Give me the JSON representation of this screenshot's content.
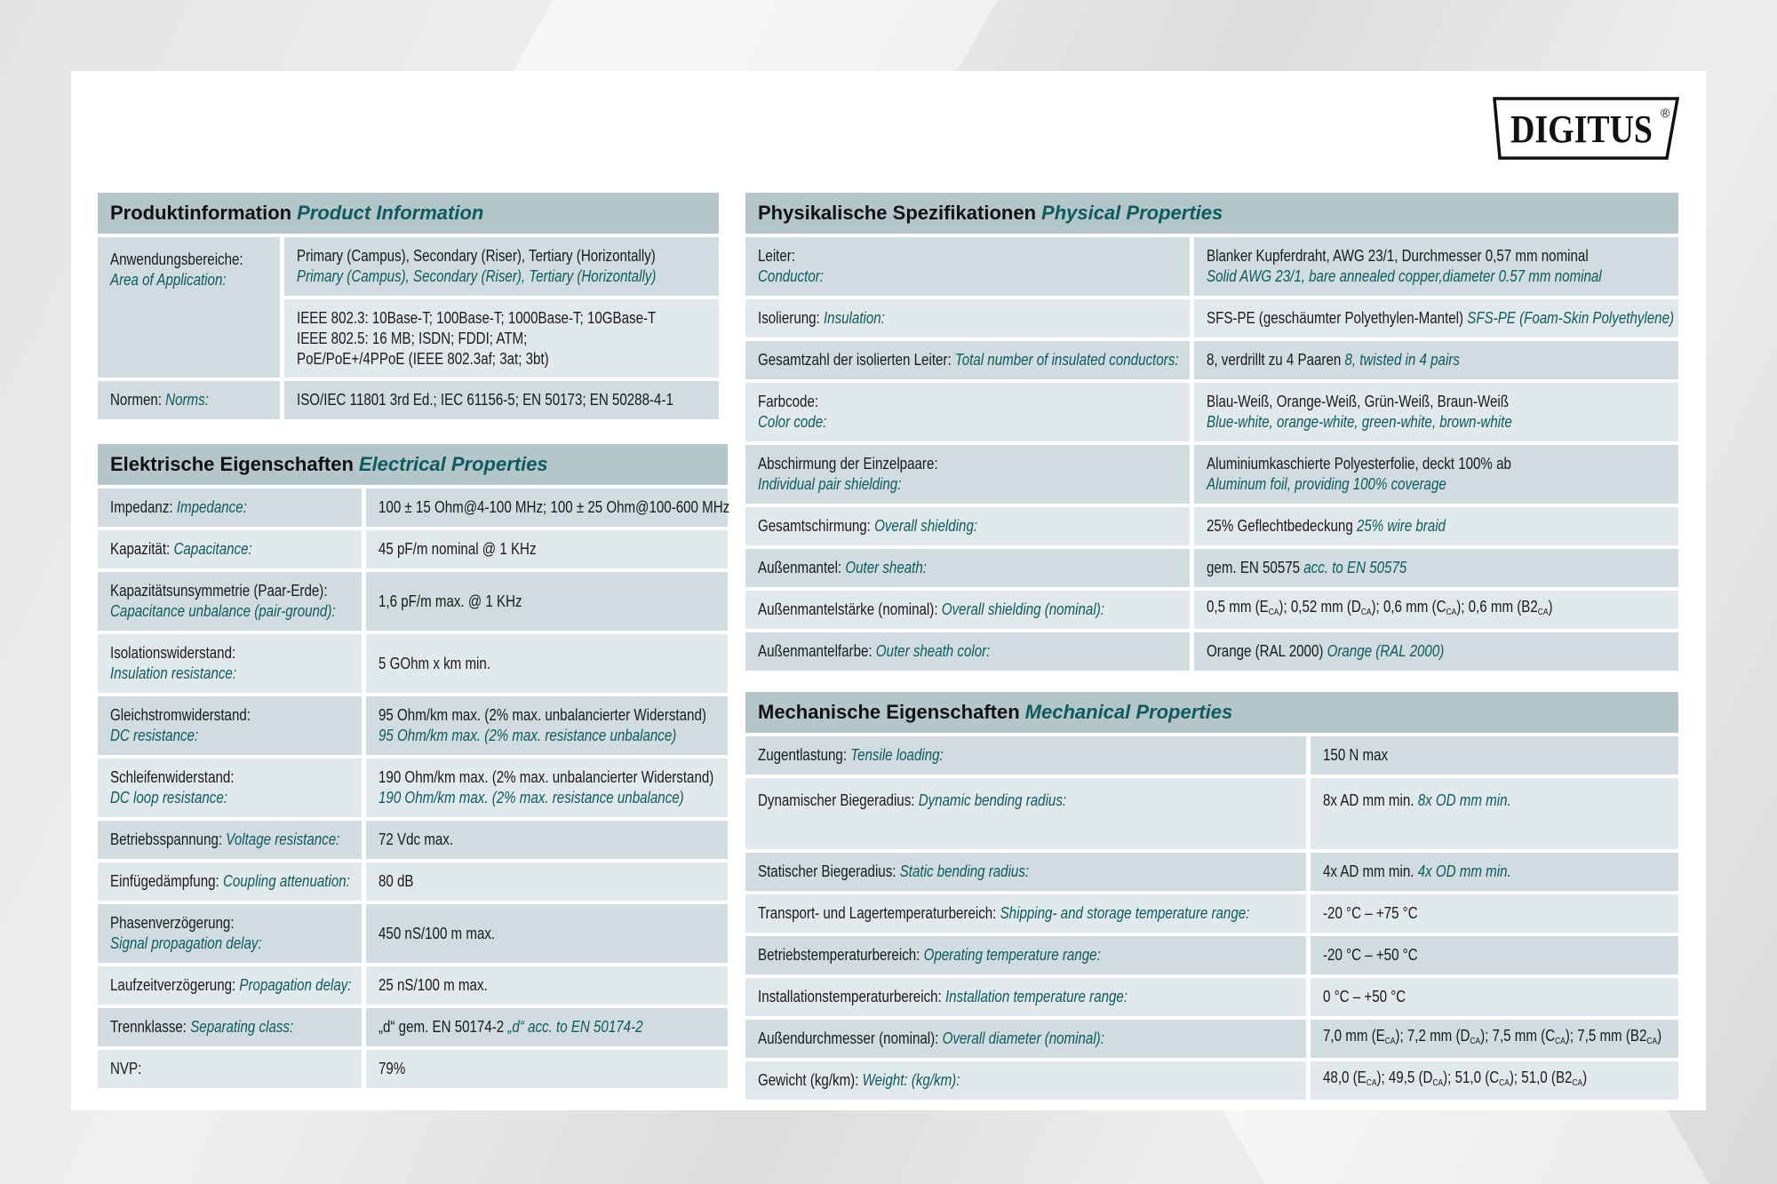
{
  "brand": {
    "logo_text": "DIGITUS",
    "registered": "®"
  },
  "colors": {
    "header_bg": "#b4c6ca",
    "row_dark": "#d0dcdf",
    "row_light": "#e1e9ec",
    "english_text": "#0d5b5c"
  },
  "product": {
    "title_de": "Produktinformation",
    "title_en": "Product Information",
    "rows": [
      {
        "label": [
          [
            {
              "t": "Anwendungsbereiche:"
            }
          ],
          [
            {
              "t": "Area of Application:",
              "en": true
            }
          ]
        ],
        "values": [
          [
            [
              {
                "t": "Primary (Campus), Secondary (Riser), Tertiary (Horizontally)"
              }
            ],
            [
              {
                "t": "Primary (Campus), Secondary (Riser), Tertiary (Horizontally)",
                "en": true
              }
            ]
          ],
          [
            [
              {
                "t": "IEEE 802.3: 10Base-T; 100Base-T; 1000Base-T; 10GBase-T"
              }
            ],
            [
              {
                "t": "IEEE 802.5: 16 MB; ISDN; FDDI; ATM;"
              }
            ],
            [
              {
                "t": "PoE/PoE+/4PPoE (IEEE 802.3af; 3at; 3bt)"
              }
            ]
          ]
        ]
      },
      {
        "label": [
          [
            {
              "t": "Normen: "
            },
            {
              "t": "Norms:",
              "en": true
            }
          ]
        ],
        "values": [
          [
            [
              {
                "t": "ISO/IEC 11801 3rd Ed.; IEC 61156-5; EN 50173; EN 50288-4-1"
              }
            ]
          ]
        ]
      }
    ]
  },
  "electrical": {
    "title_de": "Elektrische Eigenschaften",
    "title_en": "Electrical Properties",
    "rows": [
      {
        "label": [
          [
            {
              "t": "Impedanz: "
            },
            {
              "t": "Impedance:",
              "en": true
            }
          ]
        ],
        "value": [
          [
            {
              "t": "100 ± 15 Ohm@4-100 MHz; 100 ± 25 Ohm@100-600 MHz"
            }
          ]
        ]
      },
      {
        "label": [
          [
            {
              "t": "Kapazität: "
            },
            {
              "t": "Capacitance:",
              "en": true
            }
          ]
        ],
        "value": [
          [
            {
              "t": "45 pF/m nominal @ 1 KHz"
            }
          ]
        ]
      },
      {
        "label": [
          [
            {
              "t": "Kapazitätsunsymmetrie (Paar-Erde):"
            }
          ],
          [
            {
              "t": "Capacitance unbalance (pair-ground):",
              "en": true
            }
          ]
        ],
        "value": [
          [
            {
              "t": "1,6 pF/m max. @ 1 KHz"
            }
          ]
        ]
      },
      {
        "label": [
          [
            {
              "t": "Isolationswiderstand:"
            }
          ],
          [
            {
              "t": "Insulation resistance:",
              "en": true
            }
          ]
        ],
        "value": [
          [
            {
              "t": "5 GOhm x km min."
            }
          ]
        ]
      },
      {
        "label": [
          [
            {
              "t": "Gleichstromwiderstand:"
            }
          ],
          [
            {
              "t": "DC resistance:",
              "en": true
            }
          ]
        ],
        "value": [
          [
            {
              "t": "95 Ohm/km max. (2% max. unbalancierter Widerstand)"
            }
          ],
          [
            {
              "t": "95 Ohm/km max. (2% max. resistance unbalance)",
              "en": true
            }
          ]
        ]
      },
      {
        "label": [
          [
            {
              "t": "Schleifenwiderstand:"
            }
          ],
          [
            {
              "t": "DC loop resistance:",
              "en": true
            }
          ]
        ],
        "value": [
          [
            {
              "t": "190 Ohm/km max. (2% max. unbalancierter Widerstand)"
            }
          ],
          [
            {
              "t": "190 Ohm/km max. (2% max. resistance unbalance)",
              "en": true
            }
          ]
        ]
      },
      {
        "label": [
          [
            {
              "t": "Betriebsspannung: "
            },
            {
              "t": "Voltage resistance:",
              "en": true
            }
          ]
        ],
        "value": [
          [
            {
              "t": "72 Vdc max."
            }
          ]
        ]
      },
      {
        "label": [
          [
            {
              "t": "Einfügedämpfung: "
            },
            {
              "t": "Coupling attenuation:",
              "en": true
            }
          ]
        ],
        "value": [
          [
            {
              "t": "80 dB"
            }
          ]
        ]
      },
      {
        "label": [
          [
            {
              "t": "Phasenverzögerung:"
            }
          ],
          [
            {
              "t": "Signal propagation delay:",
              "en": true
            }
          ]
        ],
        "value": [
          [
            {
              "t": "450 nS/100 m max."
            }
          ]
        ]
      },
      {
        "label": [
          [
            {
              "t": "Laufzeitverzögerung: "
            },
            {
              "t": "Propagation delay:",
              "en": true
            }
          ]
        ],
        "value": [
          [
            {
              "t": "25 nS/100 m max."
            }
          ]
        ]
      },
      {
        "label": [
          [
            {
              "t": "Trennklasse: "
            },
            {
              "t": "Separating class:",
              "en": true
            }
          ]
        ],
        "value": [
          [
            {
              "t": "„d“ gem. EN 50174-2 "
            },
            {
              "t": "„d“ acc. to EN 50174-2",
              "en": true
            }
          ]
        ]
      },
      {
        "label": [
          [
            {
              "t": "NVP:"
            }
          ]
        ],
        "value": [
          [
            {
              "t": "79%"
            }
          ]
        ]
      }
    ]
  },
  "physical": {
    "title_de": "Physikalische Spezifikationen",
    "title_en": "Physical Properties",
    "rows": [
      {
        "label": [
          [
            {
              "t": "Leiter:"
            }
          ],
          [
            {
              "t": "Conductor:",
              "en": true
            }
          ]
        ],
        "value": [
          [
            {
              "t": "Blanker Kupferdraht, AWG 23/1, Durchmesser 0,57 mm nominal"
            }
          ],
          [
            {
              "t": "Solid AWG 23/1, bare annealed copper,diameter 0.57 mm nominal",
              "en": true
            }
          ]
        ]
      },
      {
        "label": [
          [
            {
              "t": "Isolierung: "
            },
            {
              "t": "Insulation:",
              "en": true
            }
          ]
        ],
        "value": [
          [
            {
              "t": "SFS-PE (geschäumter Polyethylen-Mantel) "
            },
            {
              "t": "SFS-PE (Foam-Skin Polyethylene)",
              "en": true
            }
          ]
        ]
      },
      {
        "label": [
          [
            {
              "t": "Gesamtzahl der isolierten Leiter: "
            },
            {
              "t": "Total number of insulated conductors:",
              "en": true
            }
          ]
        ],
        "value": [
          [
            {
              "t": "8, verdrillt zu 4 Paaren "
            },
            {
              "t": "8, twisted in 4 pairs",
              "en": true
            }
          ]
        ]
      },
      {
        "label": [
          [
            {
              "t": "Farbcode:"
            }
          ],
          [
            {
              "t": "Color code:",
              "en": true
            }
          ]
        ],
        "value": [
          [
            {
              "t": "Blau-Weiß, Orange-Weiß, Grün-Weiß, Braun-Weiß"
            }
          ],
          [
            {
              "t": "Blue-white, orange-white, green-white, brown-white",
              "en": true
            }
          ]
        ]
      },
      {
        "label": [
          [
            {
              "t": "Abschirmung der Einzelpaare:"
            }
          ],
          [
            {
              "t": "Individual pair shielding:",
              "en": true
            }
          ]
        ],
        "value": [
          [
            {
              "t": "Aluminiumkaschierte Polyesterfolie, deckt 100% ab"
            }
          ],
          [
            {
              "t": "Aluminum foil, providing 100% coverage",
              "en": true
            }
          ]
        ]
      },
      {
        "label": [
          [
            {
              "t": "Gesamtschirmung: "
            },
            {
              "t": "Overall shielding:",
              "en": true
            }
          ]
        ],
        "value": [
          [
            {
              "t": "25% Geflechtbedeckung "
            },
            {
              "t": "25% wire braid",
              "en": true
            }
          ]
        ]
      },
      {
        "label": [
          [
            {
              "t": "Außenmantel: "
            },
            {
              "t": "Outer sheath:",
              "en": true
            }
          ]
        ],
        "value": [
          [
            {
              "t": "gem. EN 50575 "
            },
            {
              "t": "acc. to EN 50575",
              "en": true
            }
          ]
        ]
      },
      {
        "label": [
          [
            {
              "t": "Außenmantelstärke (nominal): "
            },
            {
              "t": "Overall shielding (nominal):",
              "en": true
            }
          ]
        ],
        "value": [
          [
            {
              "t": "0,5 mm (E"
            },
            {
              "t": "CA",
              "sub": true
            },
            {
              "t": "); 0,52 mm (D"
            },
            {
              "t": "CA",
              "sub": true
            },
            {
              "t": "); 0,6 mm (C"
            },
            {
              "t": "CA",
              "sub": true
            },
            {
              "t": "); 0,6 mm (B2"
            },
            {
              "t": "CA",
              "sub": true
            },
            {
              "t": ")"
            }
          ]
        ]
      },
      {
        "label": [
          [
            {
              "t": "Außenmantelfarbe: "
            },
            {
              "t": "Outer sheath color:",
              "en": true
            }
          ]
        ],
        "value": [
          [
            {
              "t": "Orange (RAL 2000) "
            },
            {
              "t": "Orange (RAL 2000)",
              "en": true
            }
          ]
        ]
      }
    ]
  },
  "mechanical": {
    "title_de": "Mechanische Eigenschaften",
    "title_en": "Mechanical Properties",
    "rows": [
      {
        "label": [
          [
            {
              "t": "Zugentlastung: "
            },
            {
              "t": "Tensile loading:",
              "en": true
            }
          ]
        ],
        "value": [
          [
            {
              "t": "150 N max"
            }
          ]
        ]
      },
      {
        "label": [
          [
            {
              "t": "Dynamischer Biegeradius: "
            },
            {
              "t": "Dynamic bending radius:",
              "en": true
            }
          ]
        ],
        "value": [
          [
            {
              "t": "8x AD mm min. "
            },
            {
              "t": "8x OD mm min.",
              "en": true
            }
          ]
        ]
      },
      {
        "label": [
          [
            {
              "t": "Statischer Biegeradius: "
            },
            {
              "t": "Static bending radius:",
              "en": true
            }
          ]
        ],
        "value": [
          [
            {
              "t": "4x AD mm min. "
            },
            {
              "t": "4x OD mm min.",
              "en": true
            }
          ]
        ]
      },
      {
        "label": [
          [
            {
              "t": "Transport- und Lagertemperaturbereich: "
            },
            {
              "t": "Shipping- and storage temperature range:",
              "en": true
            }
          ]
        ],
        "value": [
          [
            {
              "t": "-20 °C – +75 °C"
            }
          ]
        ]
      },
      {
        "label": [
          [
            {
              "t": "Betriebstemperaturbereich: "
            },
            {
              "t": "Operating temperature range:",
              "en": true
            }
          ]
        ],
        "value": [
          [
            {
              "t": "-20 °C – +50 °C"
            }
          ]
        ]
      },
      {
        "label": [
          [
            {
              "t": "Installationstemperaturbereich: "
            },
            {
              "t": "Installation temperature range:",
              "en": true
            }
          ]
        ],
        "value": [
          [
            {
              "t": "0 °C – +50 °C"
            }
          ]
        ]
      },
      {
        "label": [
          [
            {
              "t": "Außendurchmesser (nominal): "
            },
            {
              "t": "Overall diameter (nominal):",
              "en": true
            }
          ]
        ],
        "value": [
          [
            {
              "t": "7,0 mm (E"
            },
            {
              "t": "CA",
              "sub": true
            },
            {
              "t": "); 7,2 mm (D"
            },
            {
              "t": "CA",
              "sub": true
            },
            {
              "t": "); 7,5 mm (C"
            },
            {
              "t": "CA",
              "sub": true
            },
            {
              "t": "); 7,5 mm (B2"
            },
            {
              "t": "CA",
              "sub": true
            },
            {
              "t": ")"
            }
          ]
        ]
      },
      {
        "label": [
          [
            {
              "t": "Gewicht (kg/km): "
            },
            {
              "t": "Weight: (kg/km):",
              "en": true
            }
          ]
        ],
        "value": [
          [
            {
              "t": "48,0 (E"
            },
            {
              "t": "CA",
              "sub": true
            },
            {
              "t": "); 49,5 (D"
            },
            {
              "t": "CA",
              "sub": true
            },
            {
              "t": "); 51,0 (C"
            },
            {
              "t": "CA",
              "sub": true
            },
            {
              "t": "); 51,0 (B2"
            },
            {
              "t": "CA",
              "sub": true
            },
            {
              "t": ")"
            }
          ]
        ]
      }
    ]
  }
}
